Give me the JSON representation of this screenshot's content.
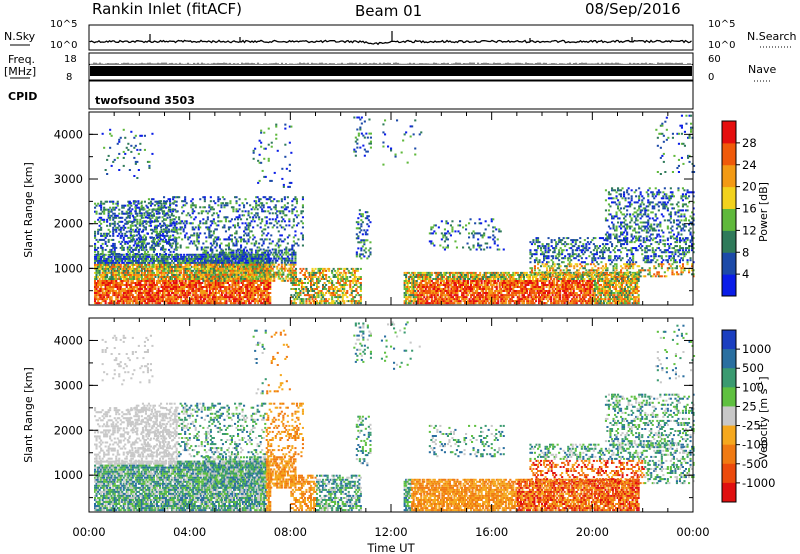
{
  "header": {
    "station": "Rankin Inlet (fitACF)",
    "beam": "Beam 01",
    "date": "08/Sep/2016"
  },
  "status_panels": {
    "nsky_label": "N.Sky",
    "nsky_ticks": [
      "10^5",
      "10^0"
    ],
    "nsearch_label": "N.Search",
    "nsearch_ticks": [
      "10^5",
      "10^0"
    ],
    "freq_label": "Freq.",
    "freq_unit": "[MHz]",
    "freq_ticks": [
      "18",
      "8"
    ],
    "nave_label": "Nave",
    "nave_ticks": [
      "60",
      "0"
    ],
    "cpid_label": "CPID",
    "cpid_value": "twofsound 3503"
  },
  "chart_data": [
    {
      "type": "heatmap",
      "name": "power-panel",
      "ylabel": "Slant Range [km]",
      "ylim": [
        180,
        4500
      ],
      "yticks": [
        "1000",
        "2000",
        "3000",
        "4000"
      ],
      "xlim_hours": [
        0,
        24
      ],
      "colorbar": {
        "label": "Power [dB]",
        "ticks": [
          "4",
          "8",
          "12",
          "16",
          "20",
          "24",
          "28"
        ],
        "colors": [
          "#0a1de8",
          "#1c4aa8",
          "#2f7a5a",
          "#5fb83b",
          "#f2d21d",
          "#f39a14",
          "#f05a0a",
          "#e50e0e"
        ]
      }
    },
    {
      "type": "heatmap",
      "name": "velocity-panel",
      "ylabel": "Slant Range [km]",
      "ylim": [
        180,
        4500
      ],
      "yticks": [
        "1000",
        "2000",
        "3000",
        "4000"
      ],
      "xlim_hours": [
        0,
        24
      ],
      "colorbar": {
        "label": "Velocity [m s",
        "label_sup": "-1",
        "label_end": "]",
        "ticks": [
          "1000",
          "500",
          "100",
          "25",
          "-25",
          "-100",
          "-500",
          "-1000"
        ],
        "colors": [
          "#1b3fc0",
          "#2a6fa0",
          "#3a9a70",
          "#5fc040",
          "#c8c8c8",
          "#f5a81e",
          "#f07a12",
          "#ec4a0c",
          "#e01010"
        ]
      }
    }
  ],
  "x_axis": {
    "label": "Time UT",
    "ticks": [
      "00:00",
      "04:00",
      "08:00",
      "12:00",
      "16:00",
      "20:00",
      "00:00"
    ]
  }
}
